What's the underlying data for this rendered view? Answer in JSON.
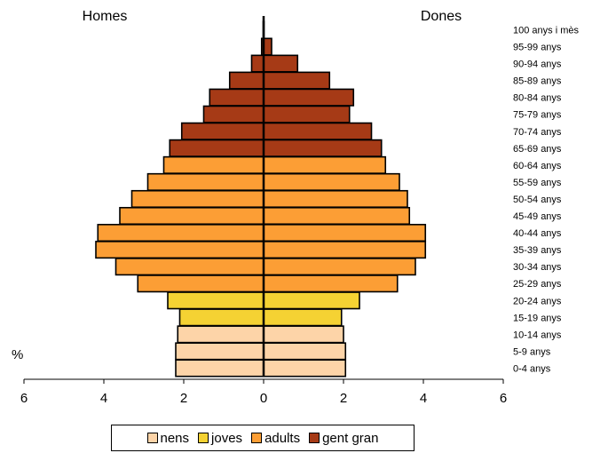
{
  "chart_data": {
    "type": "bar",
    "orientation": "horizontal-pyramid",
    "left_label": "Homes",
    "right_label": "Dones",
    "unit_label": "%",
    "x_ticks": [
      "6",
      "4",
      "2",
      "0",
      "2",
      "4",
      "6"
    ],
    "xlim": [
      -6,
      6
    ],
    "categories": [
      "0-4 anys",
      "5-9 anys",
      "10-14 anys",
      "15-19 anys",
      "20-24 anys",
      "25-29 anys",
      "30-34 anys",
      "35-39 anys",
      "40-44 anys",
      "45-49 anys",
      "50-54 anys",
      "55-59 anys",
      "60-64 anys",
      "65-69 anys",
      "70-74 anys",
      "75-79 anys",
      "80-84 anys",
      "85-89 anys",
      "90-94 anys",
      "95-99 anys",
      "100 anys i mès"
    ],
    "series": [
      {
        "name": "Homes",
        "values": [
          2.2,
          2.2,
          2.15,
          2.1,
          2.4,
          3.15,
          3.7,
          4.2,
          4.15,
          3.6,
          3.3,
          2.9,
          2.5,
          2.35,
          2.05,
          1.5,
          1.35,
          0.85,
          0.3,
          0.05,
          0.01
        ]
      },
      {
        "name": "Dones",
        "values": [
          2.05,
          2.05,
          2.0,
          1.95,
          2.4,
          3.35,
          3.8,
          4.05,
          4.05,
          3.65,
          3.6,
          3.4,
          3.05,
          2.95,
          2.7,
          2.15,
          2.25,
          1.65,
          0.85,
          0.2,
          0.01
        ]
      }
    ],
    "groups": [
      {
        "name": "nens",
        "color": "#fdd4a8",
        "rows": [
          0,
          1,
          2
        ]
      },
      {
        "name": "joves",
        "color": "#f5d233",
        "rows": [
          3,
          4
        ]
      },
      {
        "name": "adults",
        "color": "#fc9e35",
        "rows": [
          5,
          6,
          7,
          8,
          9,
          10,
          11,
          12
        ]
      },
      {
        "name": "gent gran",
        "color": "#a63a16",
        "rows": [
          13,
          14,
          15,
          16,
          17,
          18,
          19,
          20
        ]
      }
    ]
  }
}
